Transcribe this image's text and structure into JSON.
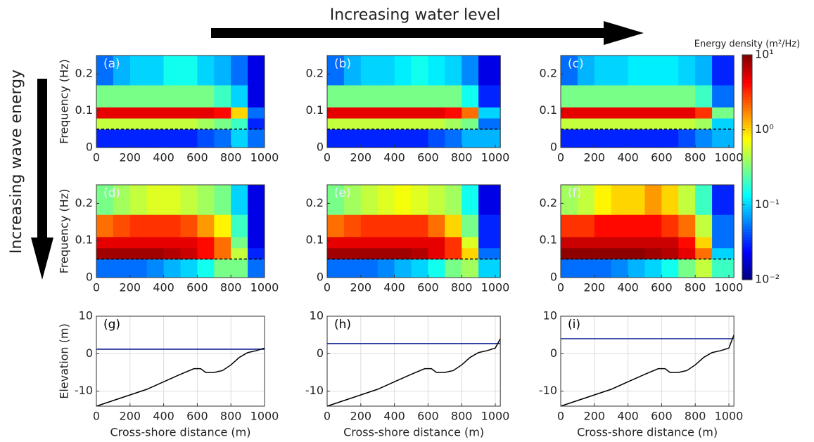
{
  "annotations": {
    "top_arrow": "Increasing water level",
    "side_arrow": "Increasing wave energy"
  },
  "colorbar": {
    "title": "Energy density (m²/Hz)",
    "lim": [
      0.01,
      10
    ],
    "log": true,
    "ticks": [
      {
        "value": 10,
        "label": "10¹"
      },
      {
        "value": 1,
        "label": "10⁰"
      },
      {
        "value": 0.1,
        "label": "10⁻¹"
      },
      {
        "value": 0.01,
        "label": "10⁻²"
      }
    ]
  },
  "chart_data": [
    {
      "type": "heatmap",
      "panel": "(a)",
      "ylabel": "Frequency (Hz)",
      "x_bins": [
        0,
        100,
        200,
        300,
        400,
        500,
        600,
        700,
        800,
        900,
        1000
      ],
      "y_bins": [
        0,
        0.05,
        0.08,
        0.11,
        0.17,
        0.25
      ],
      "values": [
        [
          0.03,
          0.03,
          0.03,
          0.03,
          0.03,
          0.03,
          0.04,
          0.05,
          0.1,
          0.05
        ],
        [
          0.5,
          0.5,
          0.5,
          0.5,
          0.5,
          0.5,
          0.4,
          0.3,
          0.2,
          0.03
        ],
        [
          5,
          5,
          5,
          5,
          5,
          5,
          5,
          4,
          1,
          0.05
        ],
        [
          0.3,
          0.3,
          0.3,
          0.3,
          0.3,
          0.3,
          0.3,
          0.2,
          0.1,
          0.02
        ],
        [
          0.05,
          0.08,
          0.1,
          0.1,
          0.15,
          0.15,
          0.1,
          0.08,
          0.05,
          0.02
        ]
      ],
      "xlim": [
        0,
        1000
      ],
      "ylim": [
        0,
        0.25
      ],
      "xticks": [
        0,
        200,
        400,
        600,
        800,
        1000
      ],
      "yticks": [
        0,
        0.1,
        0.2
      ]
    },
    {
      "type": "heatmap",
      "panel": "(b)",
      "x_bins": [
        0,
        100,
        200,
        300,
        400,
        500,
        600,
        700,
        800,
        900,
        1030
      ],
      "y_bins": [
        0,
        0.05,
        0.08,
        0.11,
        0.17,
        0.25
      ],
      "values": [
        [
          0.03,
          0.03,
          0.03,
          0.03,
          0.03,
          0.03,
          0.04,
          0.05,
          0.08,
          0.08
        ],
        [
          0.5,
          0.5,
          0.5,
          0.5,
          0.5,
          0.5,
          0.5,
          0.4,
          0.3,
          0.05
        ],
        [
          5,
          5,
          5,
          5,
          5,
          5,
          5,
          4,
          2,
          0.1
        ],
        [
          0.3,
          0.3,
          0.3,
          0.3,
          0.3,
          0.3,
          0.3,
          0.3,
          0.15,
          0.03
        ],
        [
          0.05,
          0.08,
          0.1,
          0.1,
          0.12,
          0.15,
          0.12,
          0.1,
          0.06,
          0.02
        ]
      ],
      "xlim": [
        0,
        1030
      ],
      "ylim": [
        0,
        0.25
      ],
      "xticks": [
        0,
        200,
        400,
        600,
        800,
        1000
      ],
      "yticks": [
        0,
        0.1,
        0.2
      ]
    },
    {
      "type": "heatmap",
      "panel": "(c)",
      "x_bins": [
        0,
        100,
        200,
        300,
        400,
        500,
        600,
        700,
        800,
        900,
        1030
      ],
      "y_bins": [
        0,
        0.05,
        0.08,
        0.11,
        0.17,
        0.25
      ],
      "values": [
        [
          0.03,
          0.03,
          0.03,
          0.03,
          0.03,
          0.03,
          0.03,
          0.04,
          0.06,
          0.08
        ],
        [
          0.5,
          0.5,
          0.5,
          0.5,
          0.5,
          0.5,
          0.5,
          0.5,
          0.4,
          0.1
        ],
        [
          5,
          5,
          5,
          5,
          5,
          5,
          5,
          5,
          3,
          0.3
        ],
        [
          0.3,
          0.3,
          0.3,
          0.3,
          0.3,
          0.3,
          0.3,
          0.3,
          0.2,
          0.05
        ],
        [
          0.05,
          0.08,
          0.1,
          0.1,
          0.12,
          0.12,
          0.12,
          0.1,
          0.08,
          0.03
        ]
      ],
      "xlim": [
        0,
        1030
      ],
      "ylim": [
        0,
        0.25
      ],
      "xticks": [
        0,
        200,
        400,
        600,
        800,
        1000
      ],
      "yticks": [
        0,
        0.1,
        0.2
      ]
    },
    {
      "type": "heatmap",
      "panel": "(d)",
      "ylabel": "Frequency (Hz)",
      "x_bins": [
        0,
        100,
        200,
        300,
        400,
        500,
        600,
        700,
        800,
        900,
        1000
      ],
      "y_bins": [
        0,
        0.05,
        0.08,
        0.11,
        0.17,
        0.25
      ],
      "values": [
        [
          0.05,
          0.05,
          0.05,
          0.06,
          0.08,
          0.1,
          0.15,
          0.3,
          0.3,
          0.05
        ],
        [
          8,
          8,
          8,
          8,
          7,
          6,
          4,
          2,
          0.5,
          0.03
        ],
        [
          5,
          5,
          5,
          5,
          5,
          5,
          4,
          2,
          0.3,
          0.02
        ],
        [
          2,
          2.5,
          3,
          3,
          3,
          2.5,
          1.5,
          0.8,
          0.2,
          0.02
        ],
        [
          0.3,
          0.4,
          0.5,
          0.6,
          0.6,
          0.5,
          0.4,
          0.3,
          0.1,
          0.02
        ]
      ],
      "xlim": [
        0,
        1000
      ],
      "ylim": [
        0,
        0.25
      ],
      "xticks": [
        0,
        200,
        400,
        600,
        800,
        1000
      ],
      "yticks": [
        0,
        0.1,
        0.2
      ]
    },
    {
      "type": "heatmap",
      "panel": "(e)",
      "x_bins": [
        0,
        100,
        200,
        300,
        400,
        500,
        600,
        700,
        800,
        900,
        1030
      ],
      "y_bins": [
        0,
        0.05,
        0.08,
        0.11,
        0.17,
        0.25
      ],
      "values": [
        [
          0.05,
          0.05,
          0.05,
          0.06,
          0.08,
          0.1,
          0.15,
          0.3,
          0.4,
          0.1
        ],
        [
          8,
          8,
          8,
          8,
          8,
          7,
          5,
          3,
          1,
          0.05
        ],
        [
          5,
          5,
          5,
          5,
          5,
          5,
          5,
          3,
          0.6,
          0.03
        ],
        [
          2,
          2.5,
          3,
          3,
          3,
          3,
          2,
          1,
          0.3,
          0.03
        ],
        [
          0.3,
          0.4,
          0.5,
          0.6,
          0.7,
          0.6,
          0.5,
          0.4,
          0.15,
          0.02
        ]
      ],
      "xlim": [
        0,
        1030
      ],
      "ylim": [
        0,
        0.25
      ],
      "xticks": [
        0,
        200,
        400,
        600,
        800,
        1000
      ],
      "yticks": [
        0,
        0.1,
        0.2
      ]
    },
    {
      "type": "heatmap",
      "panel": "(f)",
      "x_bins": [
        0,
        100,
        200,
        300,
        400,
        500,
        600,
        700,
        800,
        900,
        1030
      ],
      "y_bins": [
        0,
        0.05,
        0.08,
        0.11,
        0.17,
        0.25
      ],
      "values": [
        [
          0.05,
          0.05,
          0.05,
          0.06,
          0.08,
          0.1,
          0.15,
          0.3,
          0.5,
          0.2
        ],
        [
          9,
          9,
          9,
          9,
          9,
          8,
          7,
          5,
          2,
          0.1
        ],
        [
          6,
          6,
          6,
          6,
          6,
          6,
          6,
          4,
          1,
          0.05
        ],
        [
          3,
          3,
          4,
          4,
          4,
          4,
          3,
          2,
          0.5,
          0.05
        ],
        [
          0.4,
          0.5,
          0.8,
          1,
          1,
          1.5,
          1,
          0.5,
          0.2,
          0.03
        ]
      ],
      "xlim": [
        0,
        1030
      ],
      "ylim": [
        0,
        0.25
      ],
      "xticks": [
        0,
        200,
        400,
        600,
        800,
        1000
      ],
      "yticks": [
        0,
        0.1,
        0.2
      ]
    },
    {
      "type": "line",
      "panel": "(g)",
      "ylabel": "Elevation (m)",
      "xlabel": "Cross-shore distance (m)",
      "x": [
        0,
        100,
        200,
        300,
        400,
        500,
        580,
        620,
        650,
        700,
        750,
        800,
        850,
        900,
        950,
        1000
      ],
      "values": [
        -14,
        -12.5,
        -11,
        -9.5,
        -7.5,
        -5.5,
        -4,
        -4,
        -5,
        -5,
        -4.5,
        -3,
        -1,
        0.3,
        0.8,
        1.5
      ],
      "color": "#000000",
      "water_level": 1.2,
      "water_color": "#2a3c9e",
      "xlim": [
        0,
        1000
      ],
      "ylim": [
        -14,
        10
      ],
      "xticks": [
        0,
        200,
        400,
        600,
        800,
        1000
      ],
      "yticks": [
        -10,
        0,
        10
      ],
      "grid": true
    },
    {
      "type": "line",
      "panel": "(h)",
      "xlabel": "Cross-shore distance (m)",
      "x": [
        0,
        100,
        200,
        300,
        400,
        500,
        580,
        620,
        650,
        700,
        750,
        800,
        850,
        900,
        950,
        1000,
        1030
      ],
      "values": [
        -14,
        -12.5,
        -11,
        -9.5,
        -7.5,
        -5.5,
        -4,
        -4,
        -5,
        -5,
        -4.5,
        -3,
        -1,
        0.3,
        0.8,
        1.5,
        4
      ],
      "color": "#000000",
      "water_level": 2.7,
      "water_color": "#2a3c9e",
      "xlim": [
        0,
        1030
      ],
      "ylim": [
        -14,
        10
      ],
      "xticks": [
        0,
        200,
        400,
        600,
        800,
        1000
      ],
      "yticks": [
        -10,
        0,
        10
      ],
      "grid": true
    },
    {
      "type": "line",
      "panel": "(i)",
      "xlabel": "Cross-shore distance (m)",
      "x": [
        0,
        100,
        200,
        300,
        400,
        500,
        580,
        620,
        650,
        700,
        750,
        800,
        850,
        900,
        950,
        1000,
        1030
      ],
      "values": [
        -14,
        -12.5,
        -11,
        -9.5,
        -7.5,
        -5.5,
        -4,
        -4,
        -5,
        -5,
        -4.5,
        -3,
        -1,
        0.3,
        0.8,
        1.5,
        5
      ],
      "color": "#000000",
      "water_level": 4.0,
      "water_color": "#2a3c9e",
      "xlim": [
        0,
        1030
      ],
      "ylim": [
        -14,
        10
      ],
      "xticks": [
        0,
        200,
        400,
        600,
        800,
        1000
      ],
      "yticks": [
        -10,
        0,
        10
      ],
      "grid": true
    }
  ]
}
